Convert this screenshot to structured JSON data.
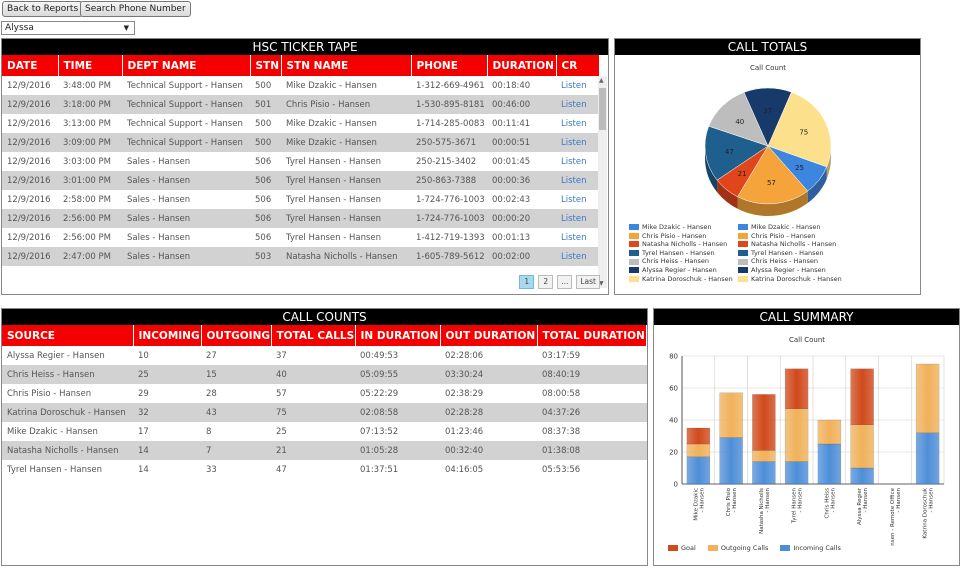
{
  "toolbar": {
    "back_label": "Back to Reports",
    "search_label": "Search Phone Number",
    "selected_person": "Alyssa"
  },
  "ticker": {
    "title": "HSC TICKER TAPE",
    "headers": [
      "DATE",
      "TIME",
      "DEPT NAME",
      "STN",
      "STN NAME",
      "PHONE",
      "DURATION",
      "CR"
    ],
    "rows": [
      [
        "12/9/2016",
        "3:48:00 PM",
        "Technical Support - Hansen",
        "500",
        "Mike Dzakic - Hansen",
        "1-312-669-4961",
        "00:18:40",
        "Listen"
      ],
      [
        "12/9/2016",
        "3:18:00 PM",
        "Technical Support - Hansen",
        "501",
        "Chris Pisio - Hansen",
        "1-530-895-8181",
        "00:46:00",
        "Listen"
      ],
      [
        "12/9/2016",
        "3:13:00 PM",
        "Technical Support - Hansen",
        "500",
        "Mike Dzakic - Hansen",
        "1-714-285-0083",
        "00:11:41",
        "Listen"
      ],
      [
        "12/9/2016",
        "3:09:00 PM",
        "Technical Support - Hansen",
        "500",
        "Mike Dzakic - Hansen",
        "250-575-3671",
        "00:00:51",
        "Listen"
      ],
      [
        "12/9/2016",
        "3:03:00 PM",
        "Sales - Hansen",
        "506",
        "Tyrel Hansen - Hansen",
        "250-215-3402",
        "00:01:45",
        "Listen"
      ],
      [
        "12/9/2016",
        "3:01:00 PM",
        "Sales - Hansen",
        "506",
        "Tyrel Hansen - Hansen",
        "250-863-7388",
        "00:00:36",
        "Listen"
      ],
      [
        "12/9/2016",
        "2:58:00 PM",
        "Sales - Hansen",
        "506",
        "Tyrel Hansen - Hansen",
        "1-724-776-1003",
        "00:02:43",
        "Listen"
      ],
      [
        "12/9/2016",
        "2:56:00 PM",
        "Sales - Hansen",
        "506",
        "Tyrel Hansen - Hansen",
        "1-724-776-1003",
        "00:00:20",
        "Listen"
      ],
      [
        "12/9/2016",
        "2:56:00 PM",
        "Sales - Hansen",
        "506",
        "Tyrel Hansen - Hansen",
        "1-412-719-1393",
        "00:01:13",
        "Listen"
      ],
      [
        "12/9/2016",
        "2:47:00 PM",
        "Sales - Hansen",
        "503",
        "Natasha Nicholls - Hansen",
        "1-605-789-5612",
        "00:02:00",
        "Listen"
      ]
    ],
    "pager": [
      "1",
      "2",
      "...",
      "Last"
    ]
  },
  "call_totals": {
    "title": "CALL TOTALS",
    "chart_title": "Call Count",
    "legend_left": [
      "Mike Dzakic - Hansen",
      "Chris Pisio - Hansen",
      "Natasha Nicholls - Hansen",
      "Tyrel Hansen - Hansen",
      "Chris Heiss - Hansen",
      "Alyssa Regier - Hansen",
      "Katrina Doroschuk - Hansen"
    ],
    "legend_right": [
      "Mike Dzakic - Hansen",
      "Chris Pisio - Hansen",
      "Natasha Nicholls - Hansen",
      "Tyrel Hansen - Hansen",
      "Chris Heiss - Hansen",
      "Alyssa Regier - Hansen",
      "Katrina Doroschuk - Hansen"
    ],
    "colors": [
      "#3d86e0",
      "#f4a43a",
      "#e0451c",
      "#1f5f8e",
      "#bdbdbd",
      "#173a6a",
      "#fde08c"
    ]
  },
  "call_counts": {
    "title": "CALL COUNTS",
    "headers": [
      "SOURCE",
      "INCOMING",
      "OUTGOING",
      "TOTAL CALLS",
      "IN DURATION",
      "OUT DURATION",
      "TOTAL DURATION"
    ],
    "rows": [
      [
        "Alyssa Regier - Hansen",
        "10",
        "27",
        "37",
        "00:49:53",
        "02:28:06",
        "03:17:59"
      ],
      [
        "Chris Heiss - Hansen",
        "25",
        "15",
        "40",
        "05:09:55",
        "03:30:24",
        "08:40:19"
      ],
      [
        "Chris Pisio - Hansen",
        "29",
        "28",
        "57",
        "05:22:29",
        "02:38:29",
        "08:00:58"
      ],
      [
        "Katrina Doroschuk - Hansen",
        "32",
        "43",
        "75",
        "02:08:58",
        "02:28:28",
        "04:37:26"
      ],
      [
        "Mike Dzakic - Hansen",
        "17",
        "8",
        "25",
        "07:13:52",
        "01:23:46",
        "08:37:38"
      ],
      [
        "Natasha Nicholls - Hansen",
        "14",
        "7",
        "21",
        "01:05:28",
        "00:32:40",
        "01:38:08"
      ],
      [
        "Tyrel Hansen - Hansen",
        "14",
        "33",
        "47",
        "01:37:51",
        "04:16:05",
        "05:53:56"
      ]
    ]
  },
  "call_summary": {
    "title": "CALL SUMMARY",
    "legend": [
      "Goal",
      "Outgoing Calls",
      "Incoming Calls"
    ],
    "colors": {
      "goal": "#d04a1c",
      "outgoing": "#f0b15a",
      "incoming": "#4e8ed8"
    }
  },
  "chart_data": [
    {
      "type": "pie",
      "title": "Call Count",
      "categories": [
        "Mike Dzakic - Hansen",
        "Chris Pisio - Hansen",
        "Natasha Nicholls - Hansen",
        "Tyrel Hansen - Hansen",
        "Chris Heiss - Hansen",
        "Alyssa Regier - Hansen",
        "Katrina Doroschuk - Hansen"
      ],
      "values": [
        25,
        57,
        21,
        47,
        40,
        37,
        75
      ],
      "legend": "bottom"
    },
    {
      "type": "bar",
      "title": "Call Count",
      "categories": [
        "Mike Dzakic - Hansen",
        "Chris Pisio - Hansen",
        "Natasha Nicholls - Hansen",
        "Tyrel Hansen - Hansen",
        "Chris Heiss - Hansen",
        "Alyssa Regier - Hansen",
        "Craig Hansen - Remote Office - Hansen",
        "Katrina Doroschuk - Hansen"
      ],
      "series": [
        {
          "name": "Incoming Calls",
          "values": [
            17,
            29,
            14,
            14,
            25,
            10,
            0,
            32
          ]
        },
        {
          "name": "Outgoing Calls",
          "values": [
            8,
            28,
            7,
            33,
            15,
            27,
            0,
            43
          ]
        },
        {
          "name": "Goal",
          "values": [
            10,
            0,
            35,
            25,
            0,
            35,
            0,
            0
          ]
        }
      ],
      "stacked": true,
      "yticks": [
        0,
        20,
        40,
        60,
        80
      ],
      "ylim": [
        0,
        80
      ],
      "grid": true,
      "legend": "bottom"
    }
  ]
}
